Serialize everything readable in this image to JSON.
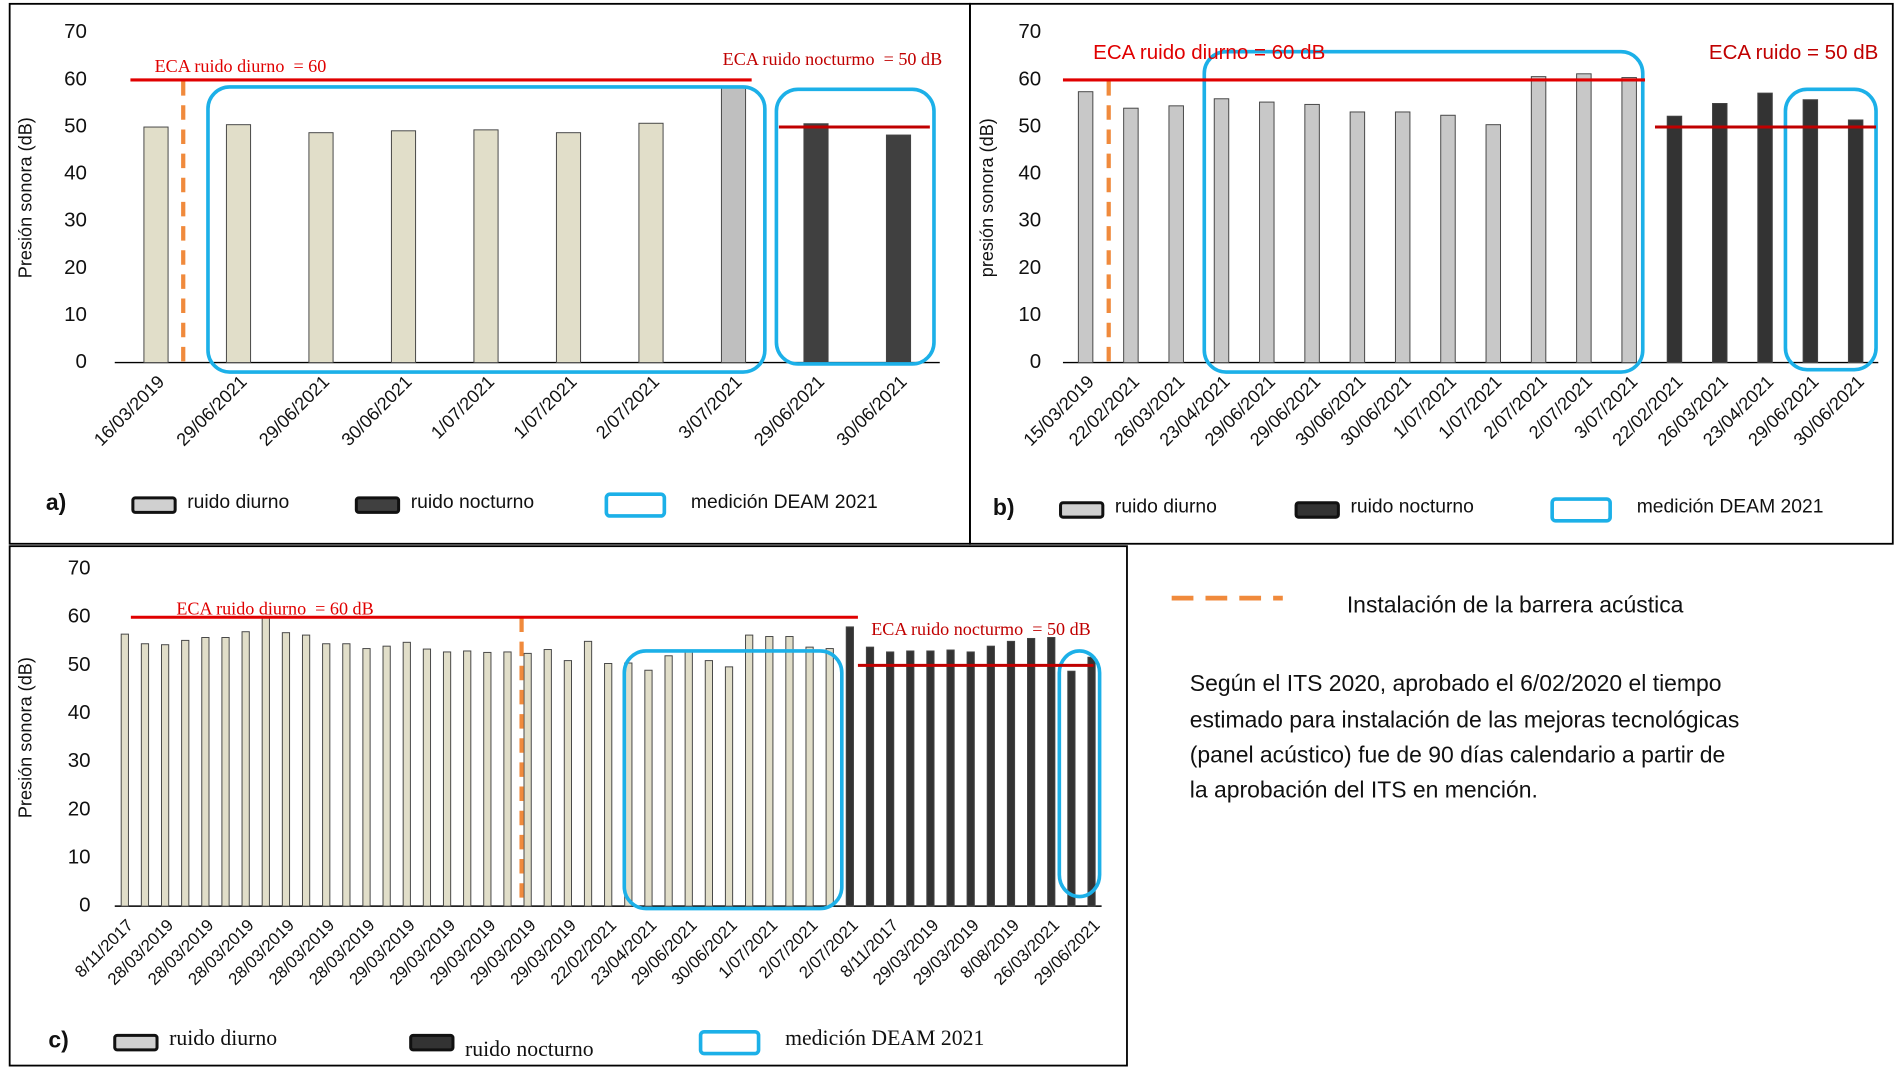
{
  "chart_data": [
    {
      "type": "bar",
      "panel_label": "a)",
      "y_label": "Presión sonora (dB)",
      "ylim": [
        0,
        70
      ],
      "yticks": [
        0,
        10,
        20,
        30,
        40,
        50,
        60,
        70
      ],
      "grid": false,
      "categories": [
        "16/03/2019",
        "29/06/2021",
        "29/06/2021",
        "30/06/2021",
        "1/07/2021",
        "1/07/2021",
        "2/07/2021",
        "3/07/2021",
        "29/06/2021",
        "30/06/2021"
      ],
      "values": [
        50,
        50.5,
        48.8,
        49.2,
        49.4,
        48.8,
        50.8,
        58.5,
        50.7,
        48.3
      ],
      "bar_colors": [
        "#e1dec9",
        "#e1dec9",
        "#e1dec9",
        "#e1dec9",
        "#e1dec9",
        "#e1dec9",
        "#e1dec9",
        "#bfbfbf",
        "#404040",
        "#404040"
      ],
      "ref_lines": [
        {
          "label": "ECA ruido diurno  = 60",
          "value": 60,
          "color": "#e00000"
        },
        {
          "label": "ECA ruido nocturmo  = 50 dB",
          "value": 50,
          "color": "#c00000"
        }
      ],
      "legend": [
        {
          "name": "ruido diurno",
          "color": "#d0d0d0"
        },
        {
          "name": "ruido nocturno",
          "color": "#404040"
        },
        {
          "name": "medición DEAM 2021",
          "color": "#1cb0e8"
        }
      ]
    },
    {
      "type": "bar",
      "panel_label": "b)",
      "y_label": "presión sonora (dB)",
      "ylim": [
        0,
        70
      ],
      "yticks": [
        0,
        10,
        20,
        30,
        40,
        50,
        60,
        70
      ],
      "grid": false,
      "categories": [
        "15/03/2019",
        "22/02/2021",
        "26/03/2021",
        "23/04/2021",
        "29/06/2021",
        "29/06/2021",
        "30/06/2021",
        "30/06/2021",
        "1/07/2021",
        "1/07/2021",
        "2/07/2021",
        "2/07/2021",
        "3/07/2021",
        "22/02/2021",
        "26/03/2021",
        "23/04/2021",
        "29/06/2021",
        "30/06/2021"
      ],
      "values": [
        57.5,
        54,
        54.5,
        56,
        55.3,
        54.8,
        53.2,
        53.2,
        52.5,
        50.5,
        60.7,
        61.3,
        60.5,
        52.3,
        55,
        57.2,
        55.8,
        51.5
      ],
      "bar_colors": [
        "#c8c8c8",
        "#c8c8c8",
        "#c8c8c8",
        "#c8c8c8",
        "#c8c8c8",
        "#c8c8c8",
        "#c8c8c8",
        "#c8c8c8",
        "#c8c8c8",
        "#c8c8c8",
        "#c8c8c8",
        "#c8c8c8",
        "#c8c8c8",
        "#333333",
        "#333333",
        "#333333",
        "#333333",
        "#333333"
      ],
      "ref_lines": [
        {
          "label": "ECA ruido diurno = 60 dB",
          "value": 60,
          "color": "#e00000"
        },
        {
          "label": "ECA ruido = 50 dB",
          "value": 50,
          "color": "#c00000"
        }
      ],
      "legend": [
        {
          "name": "ruido diurno",
          "color": "#d0d0d0"
        },
        {
          "name": "ruido nocturno",
          "color": "#333333"
        },
        {
          "name": "medición DEAM 2021",
          "color": "#1cb0e8"
        }
      ]
    },
    {
      "type": "bar",
      "panel_label": "c)",
      "y_label": "Presión sonora (dB)",
      "ylim": [
        0,
        70
      ],
      "yticks": [
        0,
        10,
        20,
        30,
        40,
        50,
        60,
        70
      ],
      "grid": false,
      "categories": [
        "8/11/2017",
        null,
        "28/03/2019",
        null,
        "28/03/2019",
        null,
        "28/03/2019",
        null,
        "28/03/2019",
        null,
        "28/03/2019",
        null,
        "28/03/2019",
        null,
        "29/03/2019",
        null,
        "29/03/2019",
        null,
        "29/03/2019",
        null,
        "29/03/2019",
        null,
        "29/03/2019",
        null,
        "22/02/2021",
        null,
        "23/04/2021",
        null,
        "29/06/2021",
        null,
        "30/06/2021",
        null,
        "1/07/2021",
        null,
        "2/07/2021",
        null,
        "2/07/2021",
        null,
        "8/11/2017",
        null,
        "29/03/2019",
        null,
        "29/03/2019",
        null,
        "8/08/2019",
        null,
        "26/03/2021",
        null,
        "29/06/2021"
      ],
      "values": [
        56.5,
        54.5,
        54.3,
        55.2,
        55.8,
        55.8,
        57,
        60,
        56.8,
        56.3,
        54.5,
        54.5,
        53.5,
        54,
        54.8,
        53.4,
        52.8,
        53,
        52.7,
        52.8,
        52.5,
        53.3,
        51,
        55,
        50.4,
        50.5,
        49,
        52,
        53,
        51,
        49.7,
        56.3,
        56,
        56,
        53.8,
        53.5,
        58,
        53.8,
        52.8,
        53,
        53,
        53.2,
        52.8,
        54,
        55,
        55.6,
        55.8,
        48.8,
        51.7
      ],
      "bar_colors": [
        "#e1dec9",
        "#e1dec9",
        "#e1dec9",
        "#e1dec9",
        "#e1dec9",
        "#e1dec9",
        "#e1dec9",
        "#e1dec9",
        "#e1dec9",
        "#e1dec9",
        "#e1dec9",
        "#e1dec9",
        "#e1dec9",
        "#e1dec9",
        "#e1dec9",
        "#e1dec9",
        "#e1dec9",
        "#e1dec9",
        "#e1dec9",
        "#e1dec9",
        "#e1dec9",
        "#e1dec9",
        "#e1dec9",
        "#e1dec9",
        "#e1dec9",
        "#e1dec9",
        "#e1dec9",
        "#e1dec9",
        "#e1dec9",
        "#e1dec9",
        "#e1dec9",
        "#e1dec9",
        "#e1dec9",
        "#e1dec9",
        "#e1dec9",
        "#e1dec9",
        "#333333",
        "#333333",
        "#333333",
        "#333333",
        "#333333",
        "#333333",
        "#333333",
        "#333333",
        "#333333",
        "#333333",
        "#333333",
        "#333333",
        "#333333"
      ],
      "ref_lines": [
        {
          "label": "ECA ruido diurno  = 60 dB",
          "value": 60,
          "color": "#e00000"
        },
        {
          "label": "ECA ruido nocturmo  = 50 dB",
          "value": 50,
          "color": "#c00000"
        }
      ],
      "legend": [
        {
          "name": "ruido diurno",
          "color": "#d0d0d0"
        },
        {
          "name": "ruido nocturno",
          "color": "#333333"
        },
        {
          "name": "medición DEAM 2021",
          "color": "#1cb0e8"
        }
      ]
    }
  ],
  "note": {
    "legend_text": "Instalación de la barrera acústica",
    "paragraph": [
      "Según el ITS 2020, aprobado el 6/02/2020 el tiempo",
      "estimado para instalación de las mejoras tecnológicas",
      "(panel acústico) fue de 90 días calendario a partir de",
      "la aprobación del ITS en mención."
    ]
  }
}
